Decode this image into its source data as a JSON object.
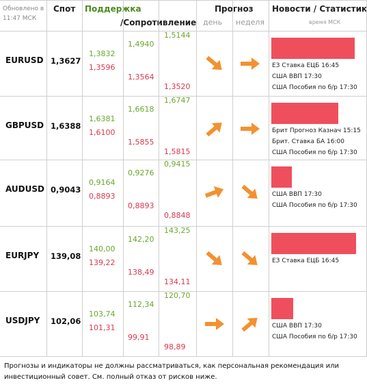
{
  "header": {
    "updated": "Обновлено в 11:47 МСК",
    "spot": "Спот",
    "support": "Поддержка",
    "resistance": "/Сопротивление",
    "forecast": "Прогноз",
    "day": "день",
    "week": "неделя",
    "news": "Новости / Статистика",
    "time": "время МСК"
  },
  "rows": [
    {
      "pair": "EURUSD",
      "spot": "1,3627",
      "levels": [
        [
          "1,3832",
          "1,3596"
        ],
        [
          "1,4940",
          "1,3564"
        ],
        [
          "1,5144",
          "1,3520"
        ]
      ],
      "news": [
        "ЕЗ Ставка ЕЦБ 16:45",
        "США ВВП 17:30",
        "США Пособия по б/р 17:30"
      ]
    },
    {
      "pair": "GBPUSD",
      "spot": "1,6388",
      "levels": [
        [
          "1,6381",
          "1,6100"
        ],
        [
          "1,6618",
          "1,5855"
        ],
        [
          "1,6747",
          "1,5815"
        ]
      ],
      "news": [
        "Брит Прогноз Казнач 15:15",
        "Брит. Ставка БА 16:00",
        "США Пособия по б/р 17:30"
      ]
    },
    {
      "pair": "AUDUSD",
      "spot": "0,9043",
      "levels": [
        [
          "0,9164",
          "0,8893"
        ],
        [
          "0,9276",
          "0,8893"
        ],
        [
          "0,9415",
          "0,8848"
        ]
      ],
      "news": [
        "США ВВП 17:30",
        "США Пособия по б/р 17:30"
      ]
    },
    {
      "pair": "EURJPY",
      "spot": "139,08",
      "levels": [
        [
          "140,00",
          "139,22"
        ],
        [
          "142,20",
          "138,49"
        ],
        [
          "143,25",
          "134,11"
        ]
      ],
      "news": [
        "ЕЗ Ставка ЕЦБ 16:45"
      ]
    },
    {
      "pair": "USDJPY",
      "spot": "102,06",
      "levels": [
        [
          "103,74",
          "101,31"
        ],
        [
          "112,34",
          "99,91"
        ],
        [
          "120,70",
          "98,89"
        ]
      ],
      "news": [
        "США ВВП 17:30",
        "США Пособия по б/р 17:30"
      ]
    }
  ],
  "footer": "Прогнозы и индикаторы не должны рассматриваться, как персональная рекомендация или инвестиционный совет. См. полный отказ от рисков ниже."
}
